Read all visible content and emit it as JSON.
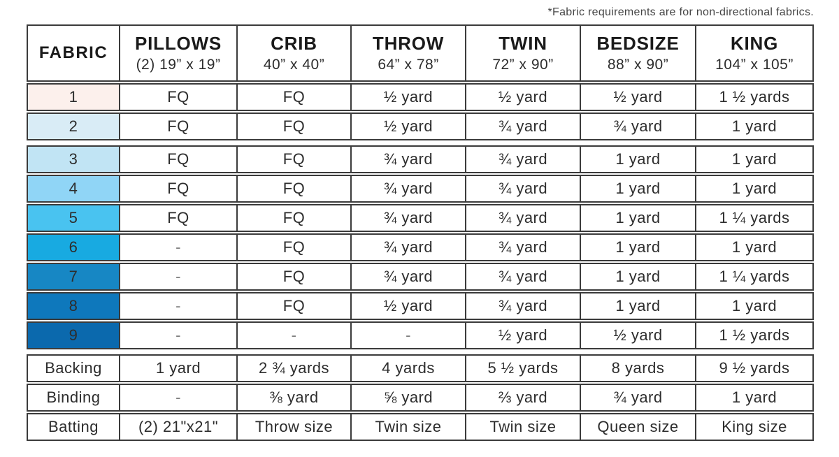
{
  "note": "*Fabric requirements are for non-directional fabrics.",
  "chart_data": {
    "type": "table",
    "columns": [
      {
        "label": "FABRIC",
        "sublabel": ""
      },
      {
        "label": "PILLOWS",
        "sublabel": "(2) 19” x 19”"
      },
      {
        "label": "CRIB",
        "sublabel": "40” x 40”"
      },
      {
        "label": "THROW",
        "sublabel": "64” x 78”"
      },
      {
        "label": "TWIN",
        "sublabel": "72” x 90”"
      },
      {
        "label": "BEDSIZE",
        "sublabel": "88” x 90”"
      },
      {
        "label": "KING",
        "sublabel": "104” x 105”"
      }
    ],
    "rows": [
      {
        "label": "1",
        "swatch": "#fcf0ec",
        "values": [
          "FQ",
          "FQ",
          "½ yard",
          "½ yard",
          "½ yard",
          "1 ½ yards"
        ]
      },
      {
        "label": "2",
        "swatch": "#d9ecf6",
        "values": [
          "FQ",
          "FQ",
          "½ yard",
          "¾ yard",
          "¾ yard",
          "1 yard"
        ]
      },
      {
        "label": "3",
        "swatch": "#c1e4f4",
        "values": [
          "FQ",
          "FQ",
          "¾ yard",
          "¾ yard",
          "1 yard",
          "1 yard"
        ]
      },
      {
        "label": "4",
        "swatch": "#90d5f6",
        "values": [
          "FQ",
          "FQ",
          "¾ yard",
          "¾ yard",
          "1 yard",
          "1 yard"
        ]
      },
      {
        "label": "5",
        "swatch": "#49c3f0",
        "values": [
          "FQ",
          "FQ",
          "¾ yard",
          "¾ yard",
          "1 yard",
          "1 ¼ yards"
        ]
      },
      {
        "label": "6",
        "swatch": "#18aae1",
        "values": [
          "-",
          "FQ",
          "¾ yard",
          "¾ yard",
          "1 yard",
          "1 yard"
        ]
      },
      {
        "label": "7",
        "swatch": "#1787c4",
        "values": [
          "-",
          "FQ",
          "¾ yard",
          "¾ yard",
          "1 yard",
          "1 ¼ yards"
        ]
      },
      {
        "label": "8",
        "swatch": "#0e78bc",
        "values": [
          "-",
          "FQ",
          "½ yard",
          "¾ yard",
          "1 yard",
          "1 yard"
        ]
      },
      {
        "label": "9",
        "swatch": "#0b69ad",
        "values": [
          "-",
          "-",
          "-",
          "½ yard",
          "½ yard",
          "1 ½ yards"
        ]
      },
      {
        "label": "Backing",
        "values": [
          "1 yard",
          "2 ¾ yards",
          "4 yards",
          "5 ½ yards",
          "8 yards",
          "9 ½ yards"
        ]
      },
      {
        "label": "Binding",
        "values": [
          "-",
          "⅜ yard",
          "⅝ yard",
          "⅔ yard",
          "¾ yard",
          "1 yard"
        ]
      },
      {
        "label": "Batting",
        "values": [
          "(2) 21\"x21\"",
          "Throw size",
          "Twin size",
          "Twin size",
          "Queen size",
          "King size"
        ]
      }
    ]
  }
}
